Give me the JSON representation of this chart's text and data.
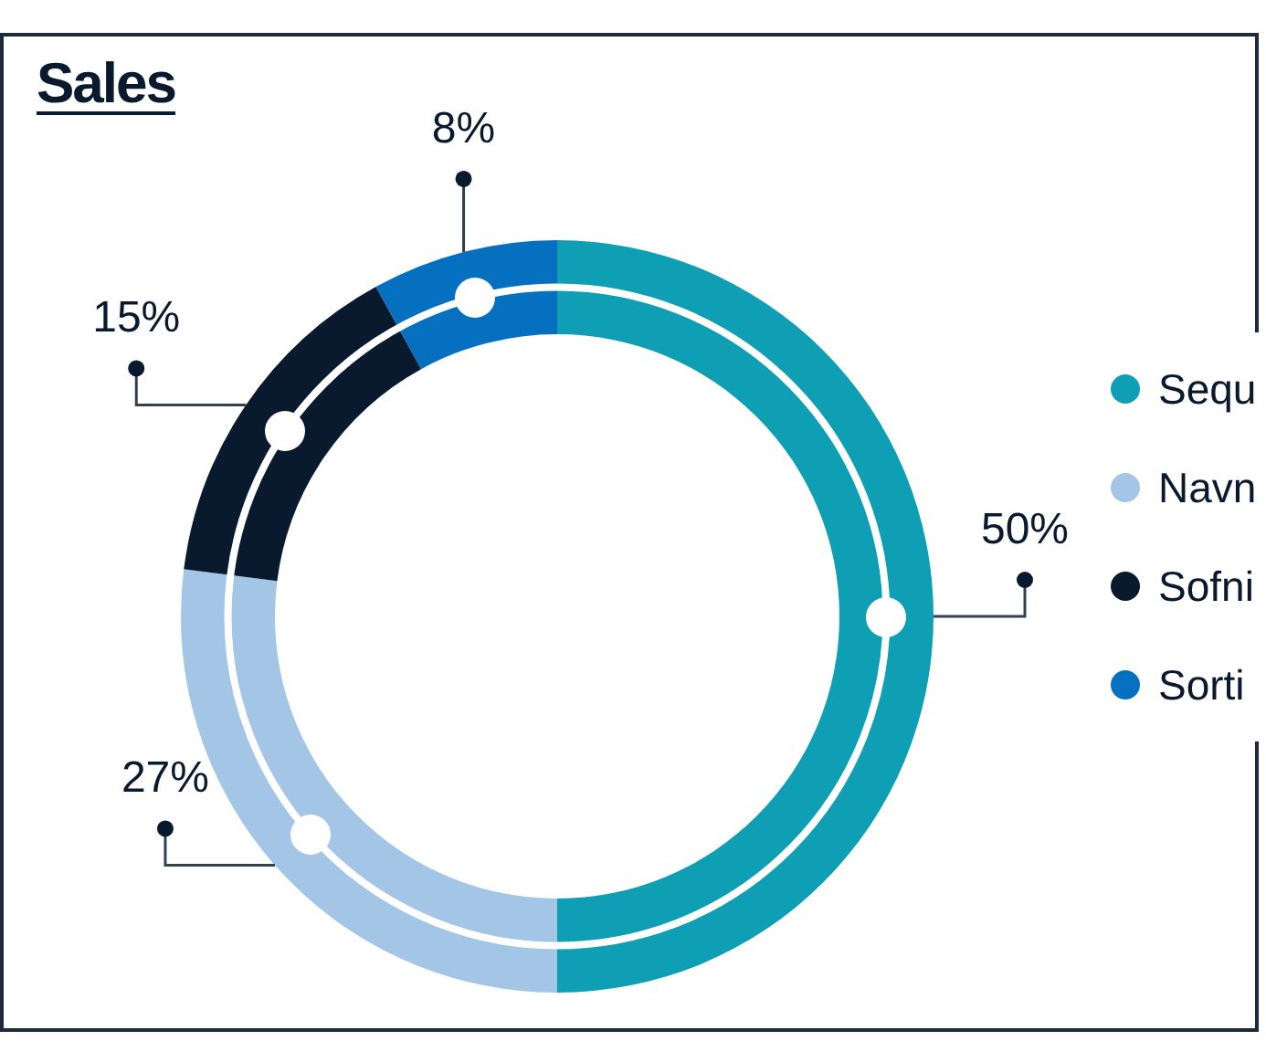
{
  "chart_data": {
    "type": "donut",
    "title": "Sales",
    "categories": [
      "Sequ",
      "Navn",
      "Sofni",
      "Sorti"
    ],
    "values": [
      50,
      27,
      15,
      8
    ],
    "colors": [
      "#0e9fb4",
      "#a3c5e6",
      "#0a1a2e",
      "#0570c0"
    ],
    "value_labels": [
      "50%",
      "27%",
      "15%",
      "8%"
    ],
    "legend": "right"
  }
}
